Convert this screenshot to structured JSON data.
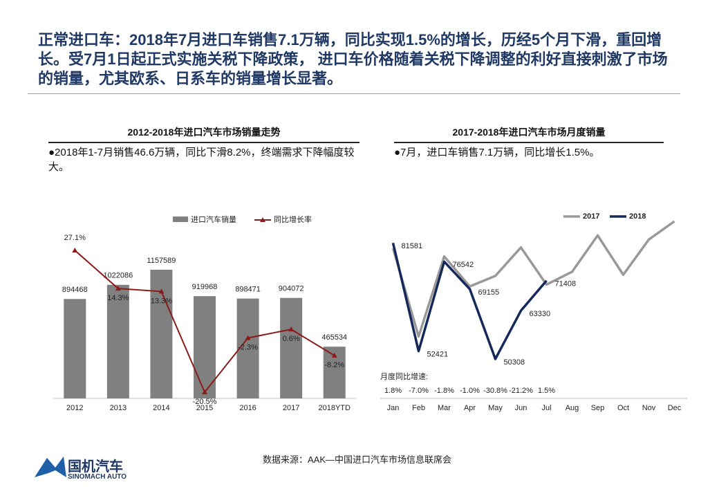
{
  "header": {
    "title": "正常进口车：2018年7月进口车销售7.1万辆，同比实现1.5%的增长，历经5个月下滑，重回增长。受7月1日起正式实施关税下降政策， 进口车价格随着关税下降调整的利好直接刺激了市场的销量，尤其欧系、日系车的销量增长显著。"
  },
  "chart_data": [
    {
      "type": "combo",
      "title": "2012-2018年进口汽车市场销量走势",
      "note": "●2018年1-7月销售46.6万辆，同比下滑8.2%，终端需求下降幅度较大。",
      "categories": [
        "2012",
        "2013",
        "2014",
        "2015",
        "2016",
        "2017",
        "2018YTD"
      ],
      "series": [
        {
          "name": "进口汽车销量",
          "type": "bar",
          "color": "#808080",
          "values": [
            894468,
            1022086,
            1157589,
            919968,
            898471,
            904072,
            465534
          ]
        },
        {
          "name": "同比增长率",
          "type": "line",
          "axis": "y2",
          "color": "#8b1a1a",
          "values": [
            27.1,
            14.3,
            13.3,
            -20.5,
            -2.3,
            0.6,
            -8.2
          ],
          "value_labels": [
            "27.1%",
            "14.3%",
            "13.3%",
            "-20.5%",
            "-2.3%",
            "0.6%",
            "-8.2%"
          ]
        }
      ]
    },
    {
      "type": "line",
      "title": "2017-2018年进口汽车市场月度销量",
      "note": "●7月，进口车销售7.1万辆，同比增长1.5%。",
      "categories": [
        "Jan",
        "Feb",
        "Mar",
        "Apr",
        "May",
        "Jun",
        "Jul",
        "Aug",
        "Sep",
        "Oct",
        "Nov",
        "Dec"
      ],
      "series": [
        {
          "name": "2017",
          "color": "#999999",
          "values": [
            80140,
            56367,
            77945,
            69854,
            72700,
            80368,
            70353,
            73800,
            83600,
            73000,
            82500,
            87400
          ]
        },
        {
          "name": "2018",
          "color": "#14285a",
          "values": [
            81581,
            52421,
            76542,
            69155,
            50308,
            63330,
            71408,
            null,
            null,
            null,
            null,
            null
          ],
          "labels": true
        }
      ],
      "growth": {
        "label": "月度同比增速:",
        "values": [
          1.8,
          -7.0,
          -1.8,
          -1.0,
          -30.8,
          -21.2,
          1.5
        ],
        "value_labels": [
          "1.8%",
          "-7.0%",
          "-1.8%",
          "-1.0%",
          "-30.8%",
          "-21.2%",
          "1.5%"
        ]
      }
    }
  ],
  "source": "数据来源：AAK—中国进口汽车市场信息联席会",
  "logo": {
    "name": "国机汽车",
    "subtitle": "SINOMACH AUTO"
  }
}
